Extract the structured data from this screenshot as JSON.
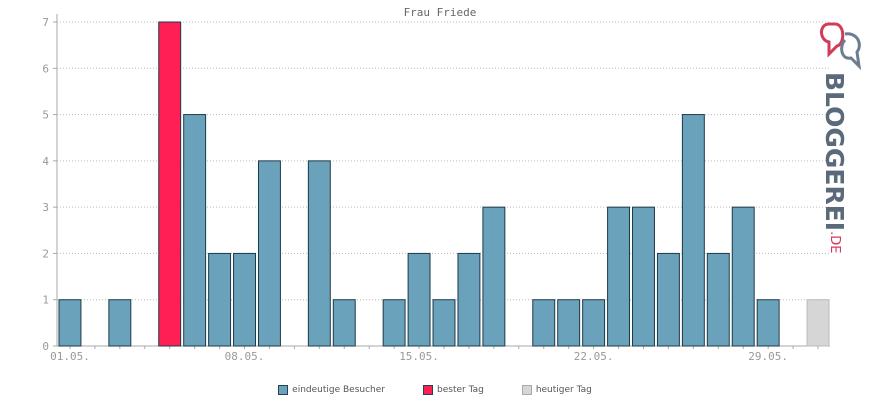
{
  "chart_data": {
    "type": "bar",
    "title": "Frau Friede",
    "categories": [
      "01.05.",
      "02.05.",
      "03.05.",
      "04.05.",
      "05.05.",
      "06.05.",
      "07.05.",
      "08.05.",
      "09.05.",
      "10.05.",
      "11.05.",
      "12.05.",
      "13.05.",
      "14.05.",
      "15.05.",
      "16.05.",
      "17.05.",
      "18.05.",
      "19.05.",
      "20.05.",
      "21.05.",
      "22.05.",
      "23.05.",
      "24.05.",
      "25.05.",
      "26.05.",
      "27.05.",
      "28.05.",
      "29.05.",
      "30.05.",
      "31.05."
    ],
    "x_tick_labels": [
      "01.05.",
      "08.05.",
      "15.05.",
      "22.05.",
      "29.05."
    ],
    "values": [
      1,
      0,
      1,
      0,
      7,
      5,
      2,
      2,
      4,
      0,
      4,
      1,
      0,
      1,
      2,
      1,
      2,
      3,
      0,
      1,
      1,
      1,
      3,
      3,
      2,
      5,
      2,
      3,
      1,
      0,
      1
    ],
    "bar_kinds": [
      "normal",
      "normal",
      "normal",
      "normal",
      "best",
      "normal",
      "normal",
      "normal",
      "normal",
      "normal",
      "normal",
      "normal",
      "normal",
      "normal",
      "normal",
      "normal",
      "normal",
      "normal",
      "normal",
      "normal",
      "normal",
      "normal",
      "normal",
      "normal",
      "normal",
      "normal",
      "normal",
      "normal",
      "normal",
      "normal",
      "today"
    ],
    "ylim": [
      0,
      7
    ],
    "yticks": [
      0,
      1,
      2,
      3,
      4,
      5,
      6,
      7
    ],
    "grid": true,
    "legend_position": "bottom",
    "series": [
      {
        "name": "eindeutige Besucher",
        "color": "#6aa2bb"
      },
      {
        "name": "bester Tag",
        "color": "#ff1f55"
      },
      {
        "name": "heutiger Tag",
        "color": "#d6d6d6"
      }
    ]
  },
  "logo": {
    "text": "BLOGGEREI",
    "tld": ".DE"
  }
}
